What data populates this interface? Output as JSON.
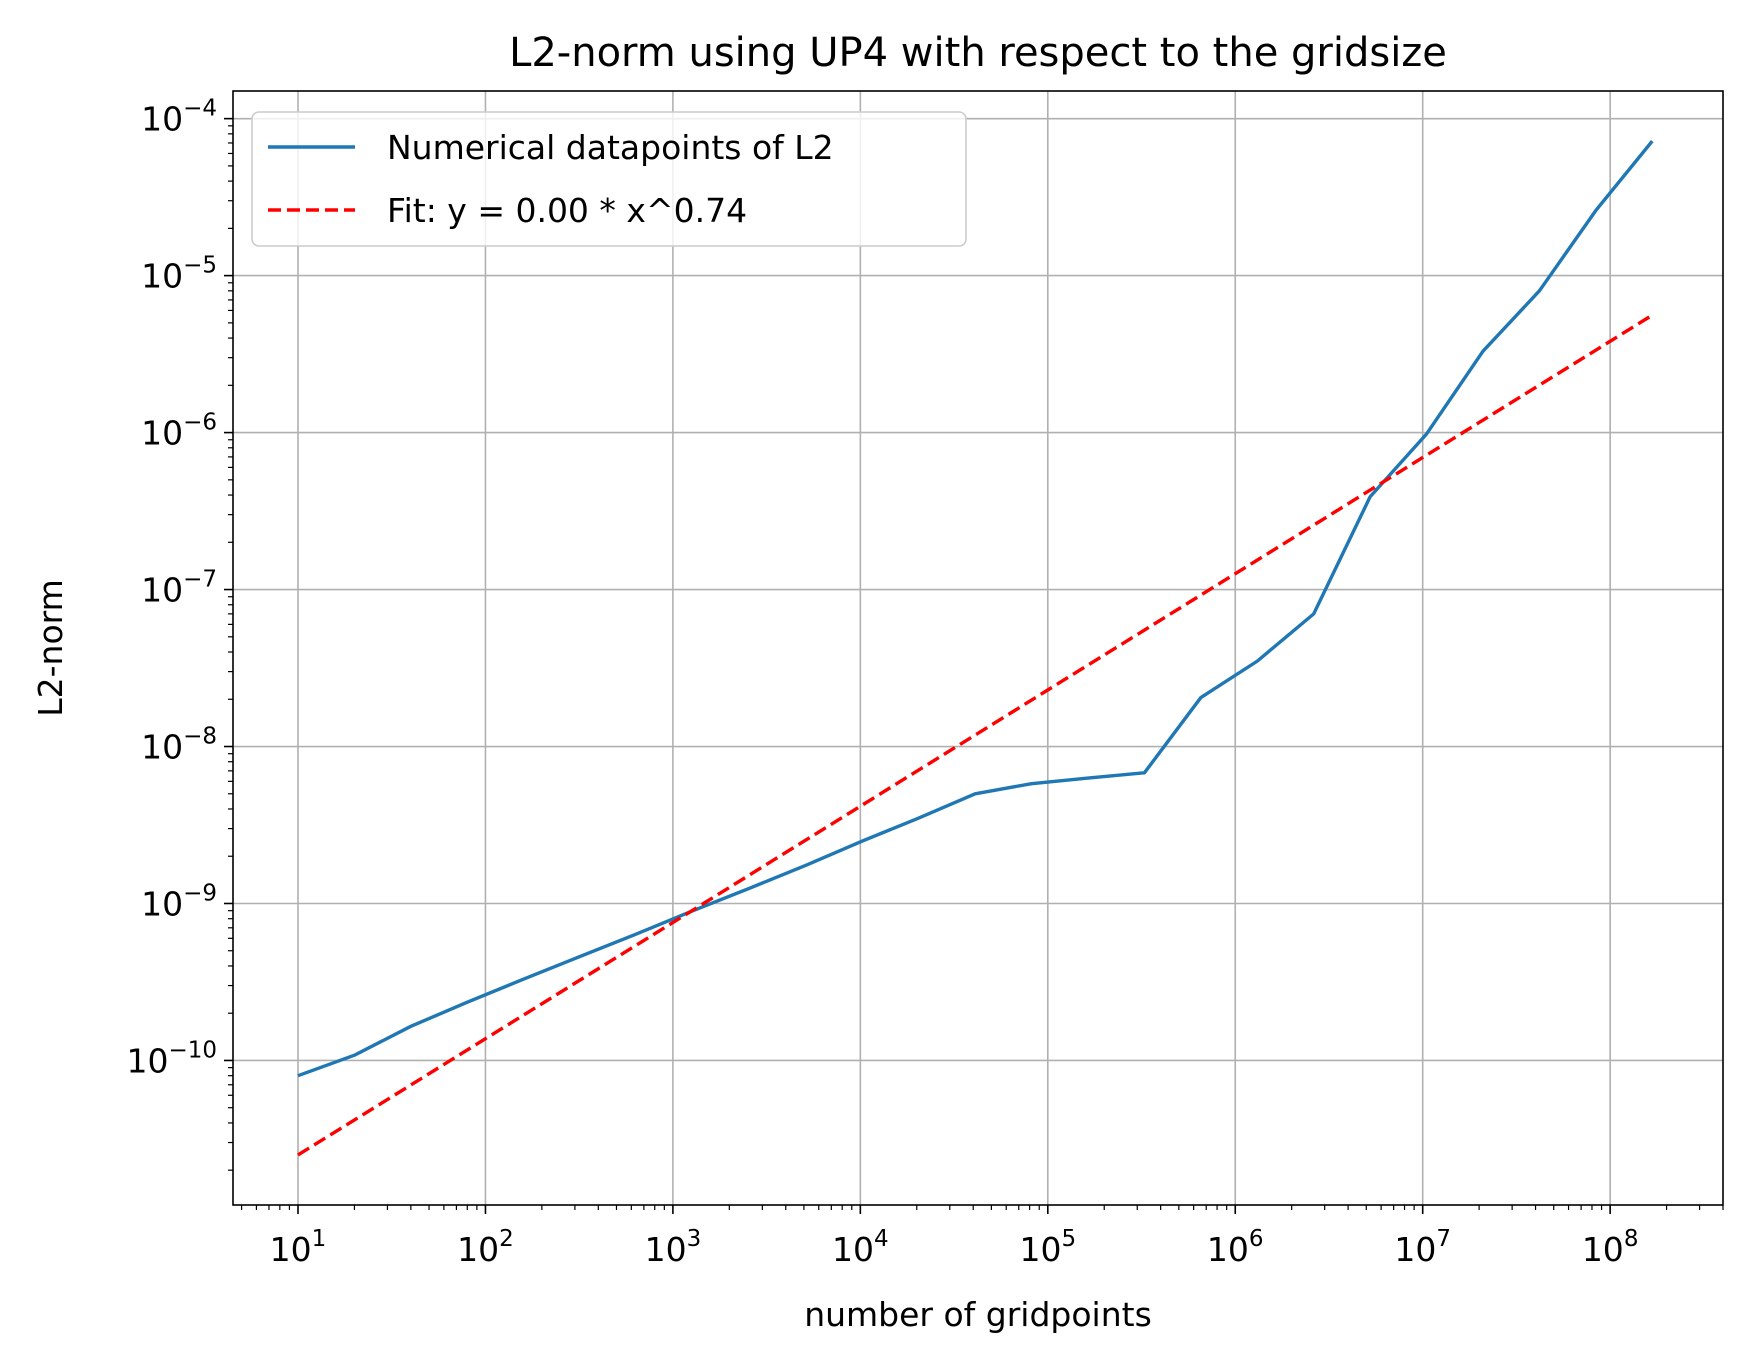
{
  "chart_data": {
    "type": "line",
    "title": "L2-norm using UP4 with respect to the gridsize",
    "xlabel": "number of gridpoints",
    "ylabel": "L2-norm",
    "xscale": "log",
    "yscale": "log",
    "xlim": [
      4.5,
      400000000
    ],
    "ylim": [
      1.2e-11,
      0.00015
    ],
    "grid": true,
    "legend_position": "top-left",
    "x_ticks": [
      {
        "base": "10",
        "exp": "1",
        "value": 10
      },
      {
        "base": "10",
        "exp": "2",
        "value": 100
      },
      {
        "base": "10",
        "exp": "3",
        "value": 1000
      },
      {
        "base": "10",
        "exp": "4",
        "value": 10000
      },
      {
        "base": "10",
        "exp": "5",
        "value": 100000
      },
      {
        "base": "10",
        "exp": "6",
        "value": 1000000
      },
      {
        "base": "10",
        "exp": "7",
        "value": 10000000
      },
      {
        "base": "10",
        "exp": "8",
        "value": 100000000
      }
    ],
    "y_ticks": [
      {
        "base": "10",
        "exp": "−10",
        "value": 1e-10
      },
      {
        "base": "10",
        "exp": "−9",
        "value": 1e-09
      },
      {
        "base": "10",
        "exp": "−8",
        "value": 1e-08
      },
      {
        "base": "10",
        "exp": "−7",
        "value": 1e-07
      },
      {
        "base": "10",
        "exp": "−6",
        "value": 1e-06
      },
      {
        "base": "10",
        "exp": "−5",
        "value": 1e-05
      },
      {
        "base": "10",
        "exp": "−4",
        "value": 0.0001
      }
    ],
    "series": [
      {
        "name": "Numerical datapoints of L2",
        "color": "#1f77b4",
        "style": "solid",
        "x": [
          10,
          20,
          40,
          80,
          160,
          320,
          640,
          1280,
          2560,
          5120,
          10240,
          20480,
          40960,
          81920,
          163840,
          327680,
          655360,
          1310720,
          2621440,
          5242880,
          10485760,
          20971520,
          41943040,
          83886080,
          167772160
        ],
        "y": [
          8e-11,
          1.08e-10,
          1.65e-10,
          2.35e-10,
          3.3e-10,
          4.6e-10,
          6.4e-10,
          9e-10,
          1.25e-09,
          1.75e-09,
          2.5e-09,
          3.5e-09,
          5e-09,
          5.8e-09,
          6.3e-09,
          6.8e-09,
          2.05e-08,
          3.5e-08,
          7e-08,
          3.9e-07,
          9.8e-07,
          3.3e-06,
          8e-06,
          2.6e-05,
          7.2e-05
        ]
      },
      {
        "name": "Fit: y = 0.00 * x^0.74",
        "color": "#ff0000",
        "style": "dashed",
        "x": [
          10,
          167772160
        ],
        "y": [
          2.5e-11,
          5.6e-06
        ]
      }
    ]
  }
}
